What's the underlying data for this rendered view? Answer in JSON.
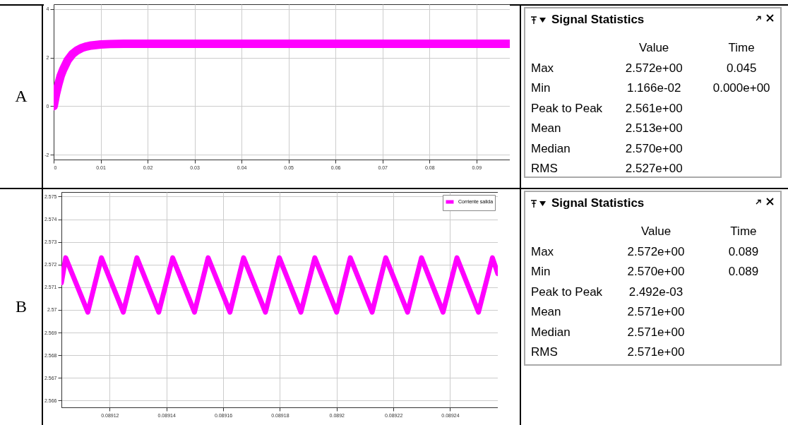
{
  "chart_data": [
    {
      "type": "line",
      "title": "A",
      "xlim": [
        0,
        0.0971
      ],
      "ylim": [
        -2.2,
        4.2
      ],
      "xticks": [
        0,
        0.01,
        0.02,
        0.03,
        0.04,
        0.05,
        0.06,
        0.07,
        0.08,
        0.09
      ],
      "yticks": [
        -2,
        0,
        2,
        4
      ],
      "grid": true,
      "series": [
        {
          "color": "#ff00ff",
          "x": [
            0,
            0.0005,
            0.001,
            0.0015,
            0.002,
            0.003,
            0.004,
            0.005,
            0.006,
            0.007,
            0.008,
            0.01,
            0.012,
            0.015,
            0.02,
            0.03,
            0.05,
            0.07,
            0.09,
            0.0971
          ],
          "values": [
            0,
            0.5,
            0.9,
            1.25,
            1.5,
            1.9,
            2.15,
            2.3,
            2.4,
            2.46,
            2.5,
            2.54,
            2.56,
            2.57,
            2.57,
            2.57,
            2.57,
            2.57,
            2.57,
            2.57
          ]
        }
      ]
    },
    {
      "type": "other",
      "title": "Signal Statistics",
      "categories": [
        "Value",
        "Time"
      ],
      "y_categories": [
        "Max",
        "Min",
        "Peak to Peak",
        "Mean",
        "Median",
        "RMS"
      ],
      "cell_labels": [
        [
          "2.572e+00",
          "0.045"
        ],
        [
          "1.166e-02",
          "0.000e+00"
        ],
        [
          "2.561e+00",
          null
        ],
        [
          "2.513e+00",
          null
        ],
        [
          "2.570e+00",
          null
        ],
        [
          "2.527e+00",
          null
        ]
      ]
    },
    {
      "type": "line",
      "title": "B",
      "xlim": [
        0.089103,
        0.0892568
      ],
      "ylim": [
        2.5657,
        2.5752
      ],
      "xticks": [
        0.08912,
        0.08914,
        0.08916,
        0.08918,
        0.0892,
        0.08922,
        0.08924
      ],
      "yticks": [
        2.566,
        2.567,
        2.568,
        2.569,
        2.57,
        2.571,
        2.572,
        2.573,
        2.574,
        2.575
      ],
      "grid": true,
      "legend": "top right",
      "series": [
        {
          "name": "Corriente salida",
          "color": "#ff00ff",
          "x": [
            0.089103,
            0.0891045,
            0.0891123,
            0.0891171,
            0.0891248,
            0.0891296,
            0.0891373,
            0.0891422,
            0.0891499,
            0.0891547,
            0.0891624,
            0.0891672,
            0.0891749,
            0.0891798,
            0.0891874,
            0.0891923,
            0.0892,
            0.0892048,
            0.0892125,
            0.0892173,
            0.089225,
            0.0892299,
            0.0892375,
            0.0892424,
            0.08925,
            0.0892549,
            0.0892568
          ],
          "values": [
            2.5712,
            2.5723,
            2.5699,
            2.5723,
            2.5699,
            2.5723,
            2.5699,
            2.5723,
            2.5699,
            2.5723,
            2.5699,
            2.5723,
            2.5699,
            2.5723,
            2.5699,
            2.5723,
            2.5699,
            2.5723,
            2.5699,
            2.5723,
            2.5699,
            2.5723,
            2.5699,
            2.5723,
            2.5699,
            2.5723,
            2.5716
          ]
        }
      ]
    },
    {
      "type": "other",
      "title": "Signal Statistics",
      "categories": [
        "Value",
        "Time"
      ],
      "y_categories": [
        "Max",
        "Min",
        "Peak to Peak",
        "Mean",
        "Median",
        "RMS"
      ],
      "cell_labels": [
        [
          "2.572e+00",
          "0.089"
        ],
        [
          "2.570e+00",
          "0.089"
        ],
        [
          "2.492e-03",
          null
        ],
        [
          "2.571e+00",
          null
        ],
        [
          "2.571e+00",
          null
        ],
        [
          "2.571e+00",
          null
        ]
      ]
    }
  ]
}
